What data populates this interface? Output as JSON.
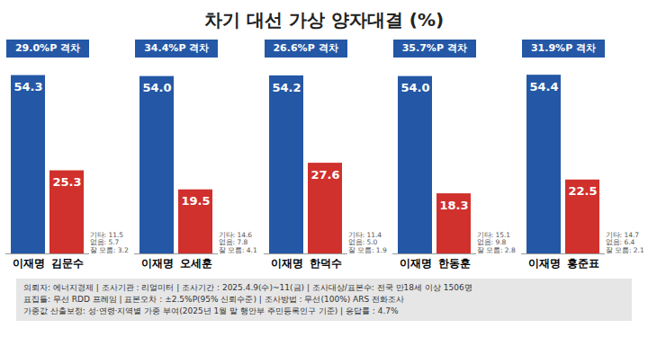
{
  "title": "차기 대선 가상 양자대결 (%)",
  "caption": [
    "의뢰자: 에너지경제 | 조사기관 : 리얼미터 | 조사기간 : 2025.4.9(수)~11(금) | 조사대상/표본수: 전국 만18세 이상 1506명",
    "표집틀: 무선 RDD 프레임 | 표본오차 : ±2.5%P(95% 신뢰수준) | 조사방법 : 무선(100%) ARS 전화조사",
    "가중값 산출보정: 성·연령·지역별 가중 부여(2025년 1월 말 행안부 주민등록인구 기준) | 응답률 : 4.7%"
  ],
  "chart_data": [
    {
      "type": "bar",
      "subtitle": "29.0%P 격차",
      "categories": [
        "이재명",
        "김문수"
      ],
      "values": [
        54.3,
        25.3
      ],
      "value_labels": [
        "54.3",
        "25.3"
      ],
      "colors": [
        "#2458a6",
        "#d0312d"
      ],
      "ylim": [
        0,
        58
      ],
      "tick_labels": "x",
      "data_labels": true,
      "annotations": [
        "기타: 11.5",
        "없음: 5.7",
        "잘 모름: 3.2"
      ]
    },
    {
      "type": "bar",
      "subtitle": "34.4%P 격차",
      "categories": [
        "이재명",
        "오세훈"
      ],
      "values": [
        54.0,
        19.5
      ],
      "value_labels": [
        "54.0",
        "19.5"
      ],
      "colors": [
        "#2458a6",
        "#d0312d"
      ],
      "ylim": [
        0,
        58
      ],
      "tick_labels": "x",
      "data_labels": true,
      "annotations": [
        "기타: 14.6",
        "없음: 7.8",
        "잘 모름: 4.1"
      ]
    },
    {
      "type": "bar",
      "subtitle": "26.6%P 격차",
      "categories": [
        "이재명",
        "한덕수"
      ],
      "values": [
        54.2,
        27.6
      ],
      "value_labels": [
        "54.2",
        "27.6"
      ],
      "colors": [
        "#2458a6",
        "#d0312d"
      ],
      "ylim": [
        0,
        58
      ],
      "tick_labels": "x",
      "data_labels": true,
      "annotations": [
        "기타: 11.4",
        "없음: 5.0",
        "잘 모름: 1.9"
      ]
    },
    {
      "type": "bar",
      "subtitle": "35.7%P 격차",
      "categories": [
        "이재명",
        "한동훈"
      ],
      "values": [
        54.0,
        18.3
      ],
      "value_labels": [
        "54.0",
        "18.3"
      ],
      "colors": [
        "#2458a6",
        "#d0312d"
      ],
      "ylim": [
        0,
        58
      ],
      "tick_labels": "x",
      "data_labels": true,
      "annotations": [
        "기타: 15.1",
        "없음: 9.8",
        "잘 모름: 2.8"
      ]
    },
    {
      "type": "bar",
      "subtitle": "31.9%P 격차",
      "categories": [
        "이재명",
        "홍준표"
      ],
      "values": [
        54.4,
        22.5
      ],
      "value_labels": [
        "54.4",
        "22.5"
      ],
      "colors": [
        "#2458a6",
        "#d0312d"
      ],
      "ylim": [
        0,
        58
      ],
      "tick_labels": "x",
      "data_labels": true,
      "annotations": [
        "기타: 14.7",
        "없음: 6.4",
        "잘 모름: 2.1"
      ]
    }
  ]
}
